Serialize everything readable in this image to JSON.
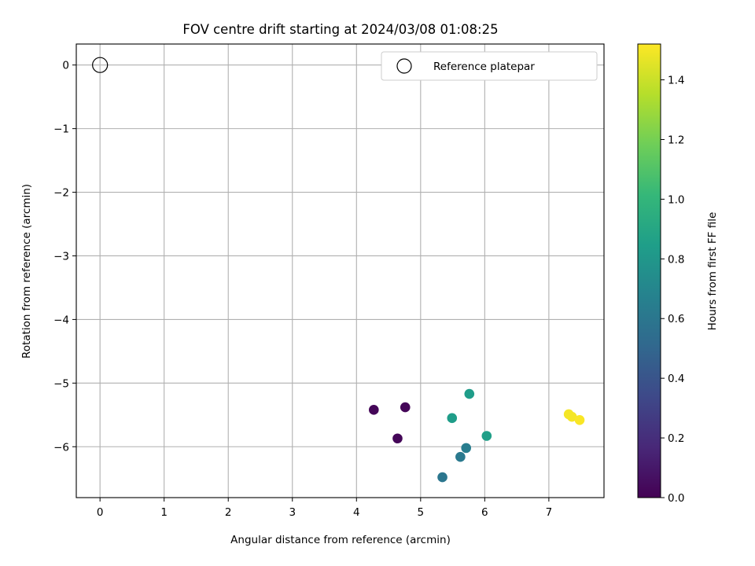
{
  "chart_data": {
    "type": "scatter",
    "title": "FOV centre drift starting at 2024/03/08 01:08:25",
    "xlabel": "Angular distance from reference (arcmin)",
    "ylabel": "Rotation from reference (arcmin)",
    "xlim": [
      -0.37,
      7.86
    ],
    "ylim": [
      -6.8,
      0.33
    ],
    "xticks": [
      0,
      1,
      2,
      3,
      4,
      5,
      6,
      7
    ],
    "xtick_labels": [
      "0",
      "1",
      "2",
      "3",
      "4",
      "5",
      "6",
      "7"
    ],
    "yticks": [
      0,
      -1,
      -2,
      -3,
      -4,
      -5,
      -6
    ],
    "ytick_labels": [
      "0",
      "−1",
      "−2",
      "−3",
      "−4",
      "−5",
      "−6"
    ],
    "grid": true,
    "legend": {
      "position": "top-right",
      "entries": [
        "Reference platepar"
      ]
    },
    "reference": {
      "x": 0,
      "y": 0,
      "label": "Reference platepar"
    },
    "colorbar": {
      "label": "Hours from first FF file",
      "colormap": "viridis",
      "range": [
        0,
        1.52
      ],
      "ticks": [
        0.0,
        0.2,
        0.4,
        0.6,
        0.8,
        1.0,
        1.2,
        1.4
      ],
      "tick_labels": [
        "0.0",
        "0.2",
        "0.4",
        "0.6",
        "0.8",
        "1.0",
        "1.2",
        "1.4"
      ]
    },
    "points": [
      {
        "x": 4.27,
        "y": -5.42,
        "c": 0.02
      },
      {
        "x": 4.76,
        "y": -5.38,
        "c": 0.02
      },
      {
        "x": 4.64,
        "y": -5.87,
        "c": 0.02
      },
      {
        "x": 5.34,
        "y": -6.48,
        "c": 0.6
      },
      {
        "x": 5.62,
        "y": -6.16,
        "c": 0.62
      },
      {
        "x": 5.71,
        "y": -6.02,
        "c": 0.64
      },
      {
        "x": 5.49,
        "y": -5.55,
        "c": 0.84
      },
      {
        "x": 5.76,
        "y": -5.17,
        "c": 0.84
      },
      {
        "x": 6.03,
        "y": -5.83,
        "c": 0.85
      },
      {
        "x": 7.31,
        "y": -5.49,
        "c": 1.5
      },
      {
        "x": 7.36,
        "y": -5.53,
        "c": 1.5
      },
      {
        "x": 7.48,
        "y": -5.58,
        "c": 1.51
      }
    ]
  },
  "colors": {
    "axes": "#000000",
    "grid": "#b0b0b0",
    "viridis": [
      "#440154",
      "#482878",
      "#3e4989",
      "#31688e",
      "#26828e",
      "#1f9e89",
      "#35b779",
      "#6ece58",
      "#b5de2b",
      "#fde725"
    ]
  }
}
